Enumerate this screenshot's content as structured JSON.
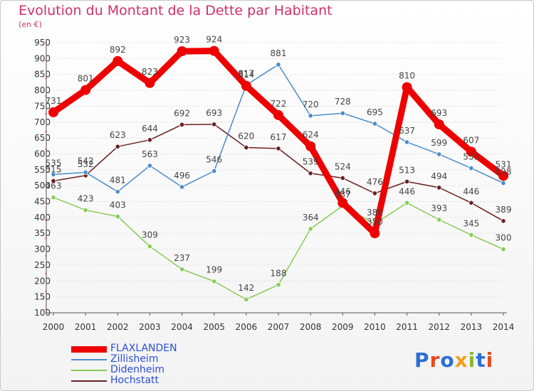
{
  "title": "Evolution du Montant de la Dette par Habitant",
  "subtitle": "(en €)",
  "logo": "Proxiti",
  "chart_data": {
    "type": "line",
    "x": [
      "2000",
      "2001",
      "2002",
      "2003",
      "2004",
      "2005",
      "2006",
      "2007",
      "2008",
      "2009",
      "2010",
      "2011",
      "2012",
      "2013",
      "2014"
    ],
    "ylim": [
      100,
      950
    ],
    "yticks": [
      100,
      150,
      200,
      250,
      300,
      350,
      400,
      450,
      500,
      550,
      600,
      650,
      700,
      750,
      800,
      850,
      900,
      950
    ],
    "grid": "horizontal dotted",
    "legend": "bottom-left",
    "series": [
      {
        "name": "FLAXLANDEN",
        "color": "#ee0000",
        "values": [
          731,
          801,
          892,
          823,
          923,
          924,
          814,
          722,
          624,
          446,
          350,
          810,
          693,
          607,
          531
        ]
      },
      {
        "name": "Zillisheim",
        "color": "#4a8ccc",
        "values": [
          535,
          542,
          481,
          563,
          496,
          546,
          817,
          881,
          720,
          728,
          695,
          637,
          599,
          555,
          508
        ]
      },
      {
        "name": "Didenheim",
        "color": "#88cc55",
        "values": [
          463,
          423,
          403,
          309,
          237,
          199,
          142,
          188,
          364,
          437,
          380,
          446,
          393,
          345,
          300
        ]
      },
      {
        "name": "Hochstatt",
        "color": "#6b2020",
        "values": [
          515,
          532,
          623,
          644,
          692,
          693,
          620,
          617,
          539,
          524,
          476,
          513,
          494,
          446,
          389
        ]
      }
    ]
  }
}
